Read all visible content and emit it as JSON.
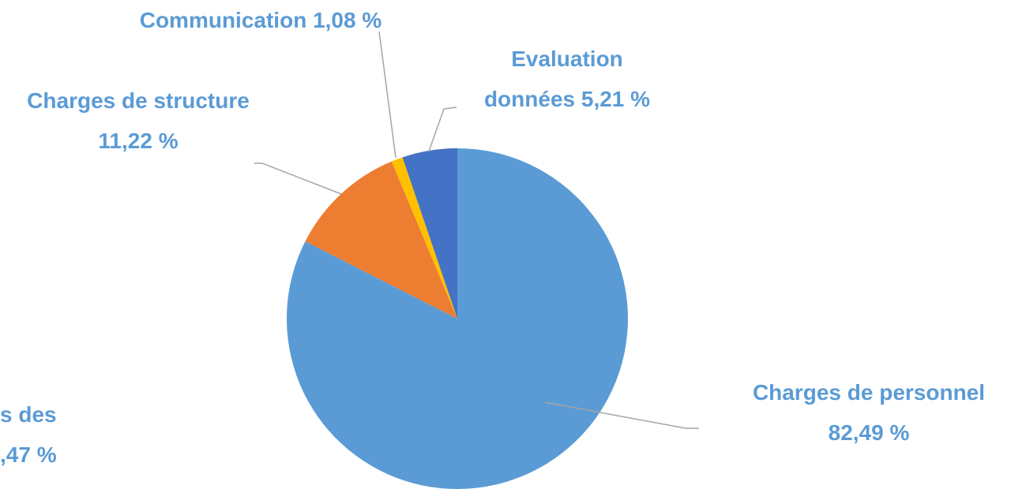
{
  "chart_data": {
    "type": "pie",
    "categories": [
      "Charges de personnel",
      "Charges de structure",
      "Communication",
      "Evaluation données"
    ],
    "values": [
      82.49,
      11.22,
      1.08,
      5.21
    ],
    "value_labels": [
      "82,49 %",
      "11,22 %",
      "1,08 %",
      "5,21 %"
    ],
    "colors": [
      "#5b9bd5",
      "#ed7d31",
      "#ffc000",
      "#4472c4"
    ],
    "annotations": [
      "s des",
      ",47 %"
    ]
  }
}
